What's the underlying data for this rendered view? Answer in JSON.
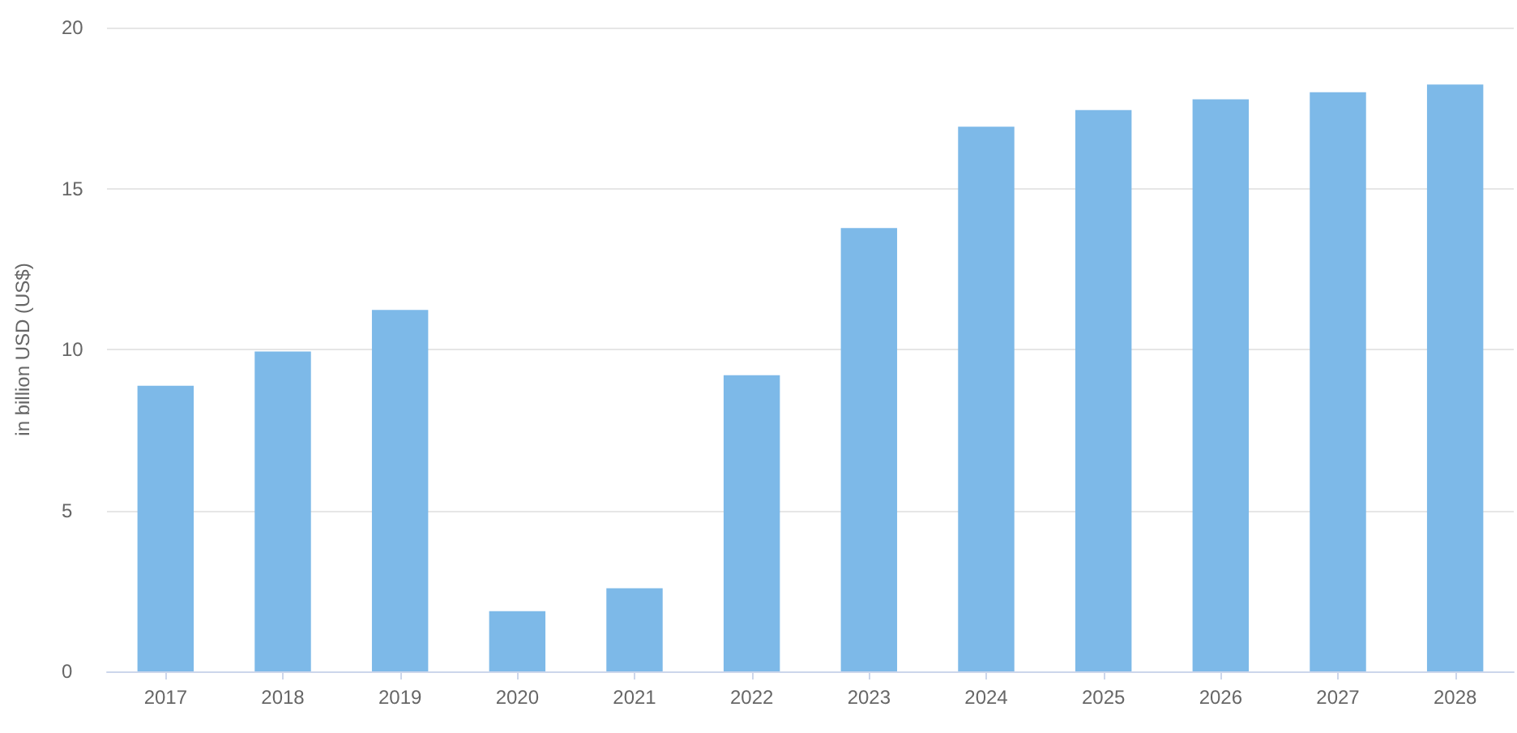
{
  "chart_data": {
    "type": "bar",
    "ylabel": "in billion USD (US$)",
    "categories": [
      "2017",
      "2018",
      "2019",
      "2020",
      "2021",
      "2022",
      "2023",
      "2024",
      "2025",
      "2026",
      "2027",
      "2028"
    ],
    "values": [
      8.87,
      9.94,
      11.23,
      1.87,
      2.58,
      9.2,
      13.77,
      16.92,
      17.44,
      17.77,
      17.99,
      18.23
    ],
    "color": "#7db9e8",
    "ylim": [
      0,
      20
    ],
    "yticks": [
      0,
      5,
      10,
      15,
      20
    ],
    "grid": "y"
  }
}
